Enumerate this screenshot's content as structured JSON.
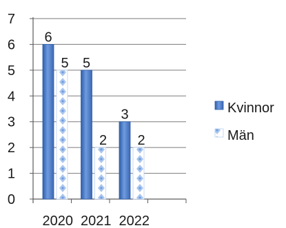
{
  "chart_data": {
    "type": "bar",
    "categories": [
      "2020",
      "2021",
      "2022"
    ],
    "series": [
      {
        "name": "Kvinnor",
        "values": [
          6,
          5,
          3
        ],
        "color": "#4a78c4",
        "pattern": "solid"
      },
      {
        "name": "Män",
        "values": [
          5,
          2,
          2
        ],
        "color": "#8fb3e8",
        "pattern": "dotted"
      }
    ],
    "ylim": [
      0,
      7
    ],
    "yticks": [
      "0",
      "1",
      "2",
      "3",
      "4",
      "5",
      "6",
      "7"
    ],
    "x_slots": 4,
    "grid": true,
    "legend": "right",
    "title": "",
    "xlabel": "",
    "ylabel": ""
  }
}
